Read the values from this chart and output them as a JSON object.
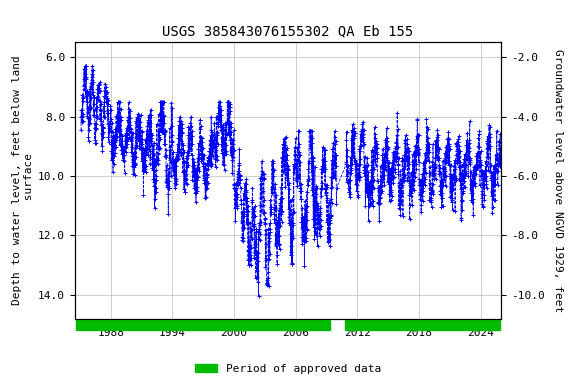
{
  "title": "USGS 385843076155302 QA Eb 155",
  "ylabel_left": "Depth to water level, feet below land\n surface",
  "ylabel_right": "Groundwater level above NGVD 1929, feet",
  "ylim_left": [
    14.8,
    5.5
  ],
  "ylim_right": [
    -10.8,
    -1.5
  ],
  "xlim": [
    1984.5,
    2026.0
  ],
  "yticks_left": [
    6.0,
    8.0,
    10.0,
    12.0,
    14.0
  ],
  "yticks_right": [
    -2.0,
    -4.0,
    -6.0,
    -8.0,
    -10.0
  ],
  "xticks": [
    1988,
    1994,
    2000,
    2006,
    2012,
    2018,
    2024
  ],
  "line_color": "#0000ff",
  "marker": "+",
  "linestyle": "--",
  "linewidth": 0.6,
  "markersize": 3.5,
  "markeredgewidth": 0.7,
  "grid_color": "#bbbbbb",
  "grid_linestyle": "-",
  "grid_linewidth": 0.5,
  "background_color": "#ffffff",
  "approved_color": "#00bb00",
  "approved_periods_data": [
    [
      1984.6,
      2009.3
    ],
    [
      2010.8,
      2025.9
    ]
  ],
  "legend_label": "Period of approved data",
  "title_fontsize": 10,
  "axis_label_fontsize": 8,
  "tick_fontsize": 8,
  "font_family": "monospace"
}
